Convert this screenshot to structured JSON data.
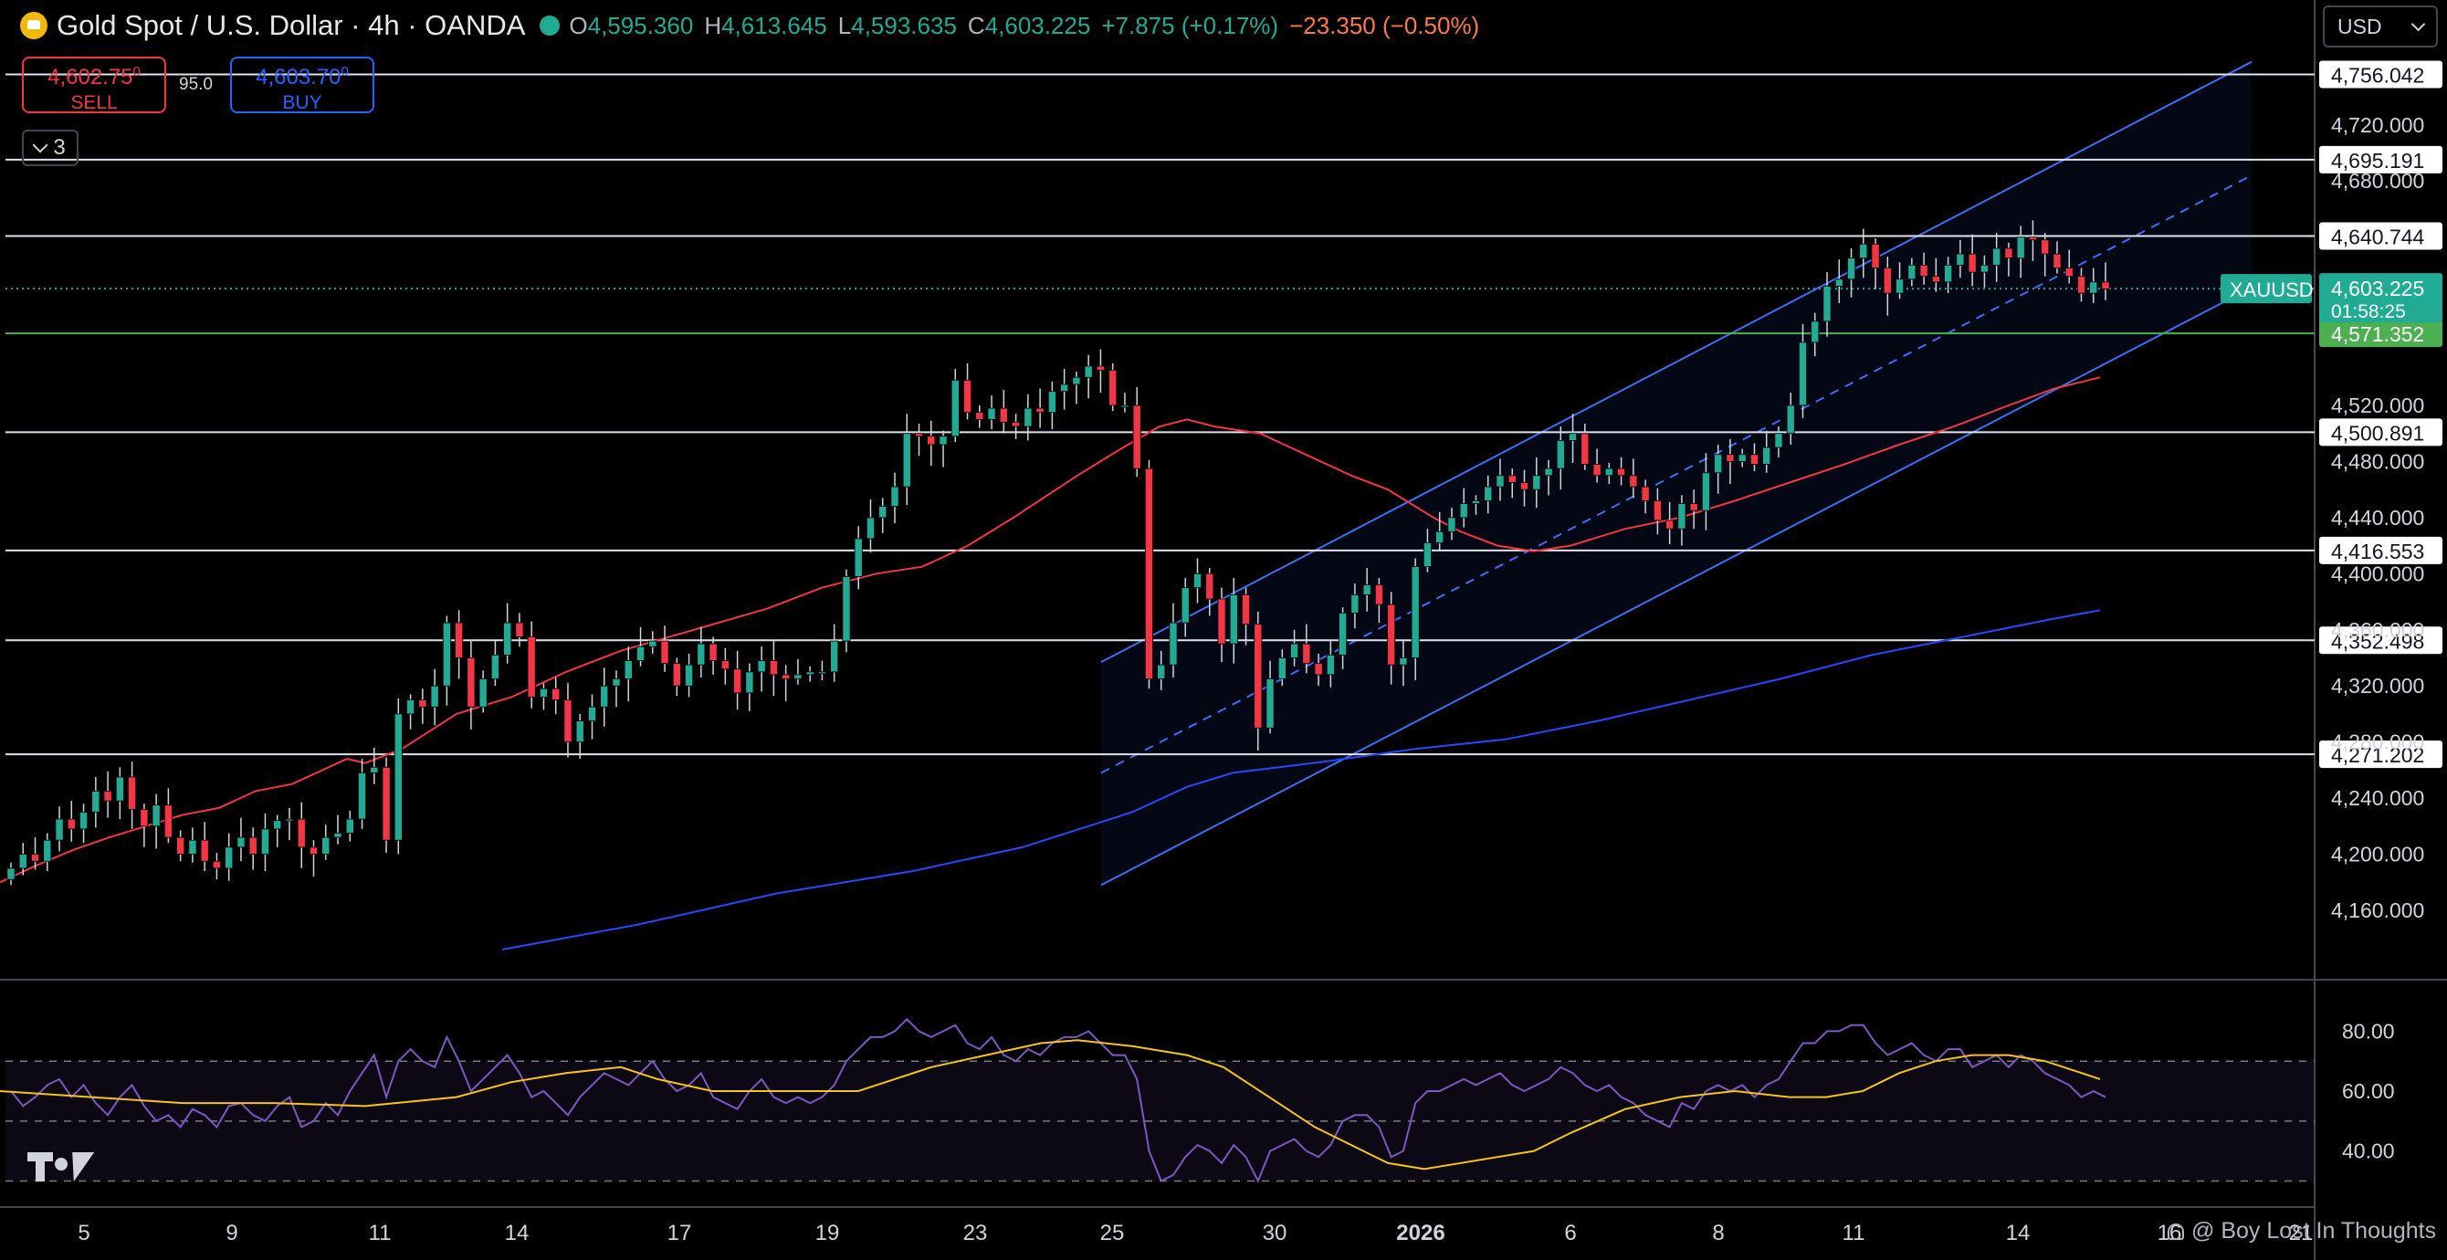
{
  "header": {
    "symbol": "Gold Spot / U.S. Dollar · 4h · OANDA",
    "ohlc": {
      "o_label": "O",
      "o": "4,595.360",
      "h_label": "H",
      "h": "4,613.645",
      "l_label": "L",
      "l": "4,593.635",
      "c_label": "C",
      "c": "4,603.225",
      "change": "+7.875 (+0.17%)",
      "change2": "−23.350 (−0.50%)"
    }
  },
  "trade": {
    "sell_price": "4,602.75",
    "sell_sup": "0",
    "sell_label": "SELL",
    "spread": "95.0",
    "buy_price": "4,603.70",
    "buy_sup": "0",
    "buy_label": "BUY"
  },
  "indicator_toggle": {
    "count": "3"
  },
  "currency": {
    "selected": "USD"
  },
  "watermark": {
    "text": "@ Boy Lost In Thoughts"
  },
  "colors": {
    "up": "#22ab94",
    "down": "#f23645",
    "ma_fast": "#f23645",
    "ma_slow": "#2947ff",
    "channel": "#3d6ff5",
    "rsi": "#7e57c2",
    "rsi_ma": "#f5c518"
  },
  "chart_data": {
    "type": "candlestick",
    "x_ticks": [
      "5",
      "9",
      "11",
      "14",
      "17",
      "19",
      "23",
      "25",
      "30",
      "2026",
      "6",
      "8",
      "11",
      "14",
      "16",
      "21"
    ],
    "price_ticks": [
      "4,720.000",
      "4,680.000",
      "4,520.000",
      "4,480.000",
      "4,440.000",
      "4,400.000",
      "4,360.000",
      "4,320.000",
      "4,280.000",
      "4,240.000",
      "4,200.000",
      "4,160.000"
    ],
    "price_ylim": [
      4132,
      4770
    ],
    "levels": [
      {
        "value": 4756.042,
        "label": "4,756.042"
      },
      {
        "value": 4695.191,
        "label": "4,695.191"
      },
      {
        "value": 4640.744,
        "label": "4,640.744"
      },
      {
        "value": 4500.891,
        "label": "4,500.891"
      },
      {
        "value": 4416.553,
        "label": "4,416.553"
      },
      {
        "value": 4352.498,
        "label": "4,352.498"
      },
      {
        "value": 4271.202,
        "label": "4,271.202"
      }
    ],
    "green_level": {
      "value": 4571.352,
      "label": "4,571.352"
    },
    "last_price": {
      "symbol": "XAUUSD",
      "value": 4603.225,
      "label": "4,603.225",
      "countdown": "01:58:25"
    },
    "closes": [
      4190,
      4200,
      4195,
      4210,
      4225,
      4218,
      4230,
      4245,
      4238,
      4255,
      4232,
      4220,
      4235,
      4212,
      4200,
      4210,
      4195,
      4190,
      4205,
      4212,
      4200,
      4218,
      4224,
      4225,
      4205,
      4200,
      4212,
      4215,
      4225,
      4258,
      4262,
      4210,
      4300,
      4310,
      4305,
      4320,
      4365,
      4340,
      4305,
      4325,
      4342,
      4365,
      4355,
      4312,
      4318,
      4310,
      4280,
      4295,
      4305,
      4320,
      4325,
      4338,
      4348,
      4352,
      4336,
      4320,
      4335,
      4350,
      4338,
      4332,
      4315,
      4330,
      4338,
      4328,
      4325,
      4328,
      4330,
      4330,
      4352,
      4398,
      4425,
      4440,
      4448,
      4462,
      4500,
      4498,
      4492,
      4498,
      4538,
      4515,
      4510,
      4518,
      4508,
      4505,
      4518,
      4515,
      4530,
      4535,
      4540,
      4548,
      4545,
      4520,
      4520,
      4475,
      4325,
      4335,
      4365,
      4390,
      4400,
      4382,
      4350,
      4385,
      4364,
      4290,
      4325,
      4340,
      4350,
      4336,
      4328,
      4342,
      4372,
      4385,
      4392,
      4378,
      4335,
      4340,
      4405,
      4422,
      4430,
      4440,
      4450,
      4452,
      4462,
      4470,
      4465,
      4460,
      4470,
      4475,
      4495,
      4500,
      4478,
      4470,
      4475,
      4470,
      4462,
      4452,
      4438,
      4432,
      4450,
      4445,
      4472,
      4485,
      4480,
      4485,
      4478,
      4490,
      4500,
      4520,
      4565,
      4580,
      4605,
      4610,
      4625,
      4635,
      4618,
      4600,
      4610,
      4620,
      4612,
      4608,
      4620,
      4628,
      4615,
      4620,
      4632,
      4625,
      4640,
      4638,
      4628,
      4618,
      4612,
      4600,
      4608,
      4603
    ],
    "ma_fast": [
      [
        0,
        4180
      ],
      [
        40,
        4192
      ],
      [
        80,
        4203
      ],
      [
        120,
        4212
      ],
      [
        160,
        4220
      ],
      [
        200,
        4228
      ],
      [
        240,
        4233
      ],
      [
        280,
        4245
      ],
      [
        320,
        4250
      ],
      [
        360,
        4262
      ],
      [
        380,
        4268
      ],
      [
        400,
        4265
      ],
      [
        440,
        4275
      ],
      [
        500,
        4300
      ],
      [
        560,
        4312
      ],
      [
        620,
        4330
      ],
      [
        680,
        4345
      ],
      [
        760,
        4360
      ],
      [
        840,
        4375
      ],
      [
        900,
        4390
      ],
      [
        960,
        4400
      ],
      [
        1010,
        4405
      ],
      [
        1060,
        4420
      ],
      [
        1110,
        4440
      ],
      [
        1180,
        4470
      ],
      [
        1230,
        4490
      ],
      [
        1270,
        4505
      ],
      [
        1300,
        4510
      ],
      [
        1330,
        4505
      ],
      [
        1380,
        4500
      ],
      [
        1420,
        4488
      ],
      [
        1480,
        4470
      ],
      [
        1520,
        4460
      ],
      [
        1570,
        4440
      ],
      [
        1600,
        4430
      ],
      [
        1640,
        4420
      ],
      [
        1680,
        4416
      ],
      [
        1720,
        4420
      ],
      [
        1780,
        4432
      ],
      [
        1840,
        4440
      ],
      [
        1900,
        4452
      ],
      [
        1960,
        4465
      ],
      [
        2020,
        4478
      ],
      [
        2080,
        4492
      ],
      [
        2140,
        4505
      ],
      [
        2200,
        4520
      ],
      [
        2250,
        4532
      ],
      [
        2300,
        4540
      ]
    ],
    "ma_slow": [
      [
        550,
        4132
      ],
      [
        700,
        4150
      ],
      [
        850,
        4172
      ],
      [
        1000,
        4188
      ],
      [
        1120,
        4205
      ],
      [
        1240,
        4230
      ],
      [
        1300,
        4248
      ],
      [
        1350,
        4258
      ],
      [
        1450,
        4266
      ],
      [
        1550,
        4275
      ],
      [
        1650,
        4282
      ],
      [
        1750,
        4295
      ],
      [
        1850,
        4310
      ],
      [
        1950,
        4325
      ],
      [
        2050,
        4342
      ],
      [
        2150,
        4355
      ],
      [
        2250,
        4368
      ],
      [
        2300,
        4374
      ]
    ],
    "rsi_ticks": [
      "80.00",
      "60.00",
      "40.00"
    ],
    "rsi_ylim": [
      28,
      92
    ],
    "rsi_bands": [
      70,
      50,
      30
    ],
    "rsi": [
      60,
      55,
      58,
      62,
      64,
      58,
      62,
      56,
      52,
      58,
      62,
      55,
      50,
      52,
      48,
      54,
      52,
      48,
      55,
      56,
      52,
      50,
      55,
      58,
      48,
      50,
      56,
      52,
      60,
      66,
      72,
      58,
      70,
      74,
      70,
      68,
      78,
      70,
      60,
      64,
      68,
      72,
      66,
      58,
      60,
      56,
      52,
      58,
      62,
      66,
      64,
      62,
      66,
      70,
      64,
      60,
      62,
      66,
      58,
      56,
      54,
      60,
      64,
      58,
      56,
      58,
      56,
      58,
      62,
      70,
      74,
      78,
      78,
      80,
      84,
      80,
      78,
      80,
      82,
      76,
      74,
      78,
      72,
      70,
      74,
      72,
      76,
      78,
      78,
      80,
      76,
      72,
      72,
      64,
      40,
      30,
      32,
      38,
      42,
      40,
      36,
      42,
      38,
      30,
      40,
      42,
      44,
      40,
      38,
      42,
      50,
      52,
      52,
      48,
      38,
      40,
      56,
      60,
      60,
      62,
      64,
      62,
      64,
      66,
      62,
      60,
      62,
      64,
      68,
      66,
      62,
      60,
      62,
      58,
      56,
      52,
      50,
      48,
      56,
      54,
      60,
      62,
      60,
      62,
      58,
      62,
      64,
      70,
      76,
      76,
      80,
      80,
      82,
      82,
      76,
      72,
      74,
      76,
      72,
      70,
      74,
      74,
      68,
      70,
      72,
      68,
      72,
      70,
      66,
      64,
      62,
      58,
      60,
      58
    ],
    "rsi_ma": [
      [
        0,
        60
      ],
      [
        100,
        58
      ],
      [
        200,
        56
      ],
      [
        300,
        56
      ],
      [
        400,
        55
      ],
      [
        500,
        58
      ],
      [
        560,
        63
      ],
      [
        620,
        66
      ],
      [
        680,
        68
      ],
      [
        720,
        64
      ],
      [
        780,
        60
      ],
      [
        860,
        60
      ],
      [
        940,
        60
      ],
      [
        960,
        62
      ],
      [
        1020,
        68
      ],
      [
        1080,
        72
      ],
      [
        1140,
        76
      ],
      [
        1180,
        77
      ],
      [
        1240,
        75
      ],
      [
        1300,
        72
      ],
      [
        1340,
        68
      ],
      [
        1400,
        56
      ],
      [
        1440,
        48
      ],
      [
        1480,
        42
      ],
      [
        1520,
        36
      ],
      [
        1560,
        34
      ],
      [
        1600,
        36
      ],
      [
        1640,
        38
      ],
      [
        1680,
        40
      ],
      [
        1720,
        46
      ],
      [
        1780,
        54
      ],
      [
        1840,
        58
      ],
      [
        1900,
        60
      ],
      [
        1960,
        58
      ],
      [
        2000,
        58
      ],
      [
        2040,
        60
      ],
      [
        2080,
        66
      ],
      [
        2120,
        70
      ],
      [
        2160,
        72
      ],
      [
        2200,
        72
      ],
      [
        2240,
        70
      ],
      [
        2280,
        66
      ],
      [
        2300,
        64
      ]
    ]
  }
}
